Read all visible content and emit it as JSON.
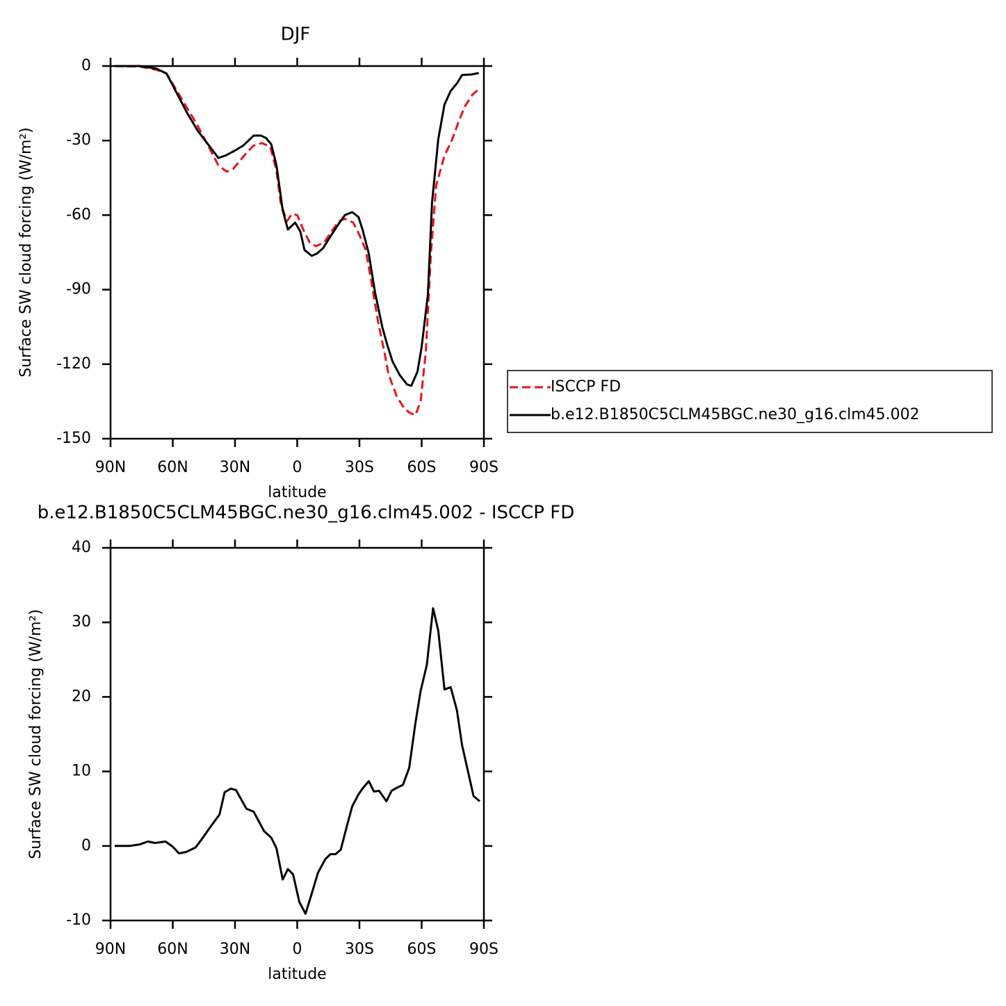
{
  "chart_data": [
    {
      "type": "line",
      "title": "DJF",
      "xlabel": "latitude",
      "ylabel": "Surface SW cloud forcing (W/m²)",
      "xlim": [
        90,
        -90
      ],
      "xticks": [
        {
          "value": 90,
          "label": "90N"
        },
        {
          "value": 60,
          "label": "60N"
        },
        {
          "value": 30,
          "label": "30N"
        },
        0,
        {
          "value": -30,
          "label": "30S"
        },
        {
          "value": -60,
          "label": "60S"
        },
        {
          "value": -90,
          "label": "90S"
        }
      ],
      "ylim": [
        -150,
        0
      ],
      "yticks": [
        0,
        -30,
        -60,
        -90,
        -120,
        -150
      ],
      "legend": "right",
      "series": [
        {
          "name": "ISCCP FD",
          "color": "#e8141c",
          "dashed": true,
          "x": [
            88,
            76,
            68,
            63,
            58,
            53,
            48,
            43,
            38,
            34,
            31,
            28,
            24,
            21,
            17,
            13,
            10,
            8,
            5,
            2.5,
            0,
            -3,
            -6,
            -9,
            -13,
            -17,
            -20,
            -23,
            -27,
            -30,
            -33,
            -36,
            -39,
            -42,
            -44,
            -48,
            -51,
            -54,
            -57,
            -59.5,
            -62,
            -64.5,
            -67,
            -71,
            -74.5,
            -78,
            -81,
            -84.5,
            -88
          ],
          "values": [
            0,
            -0.2,
            -1.5,
            -3,
            -10,
            -17,
            -24,
            -32,
            -40,
            -42.5,
            -41.5,
            -38.5,
            -34.5,
            -32,
            -31,
            -32.5,
            -42,
            -55,
            -62.5,
            -59.5,
            -60,
            -66,
            -71,
            -72.5,
            -71,
            -66,
            -62.5,
            -61.5,
            -63,
            -68,
            -74,
            -88,
            -103,
            -115,
            -124,
            -133,
            -137,
            -139.5,
            -140.5,
            -135,
            -115,
            -75,
            -48,
            -36,
            -30,
            -22,
            -16,
            -11.5,
            -9
          ]
        },
        {
          "name": "b.e12.B1850C5CLM45BGC.ne30_g16.clm45.002",
          "color": "#000000",
          "dashed": false,
          "x": [
            88,
            76,
            68,
            63,
            58,
            53,
            48,
            43,
            38,
            34.5,
            30,
            26,
            21,
            17.5,
            15,
            12.5,
            10,
            7,
            4.5,
            1,
            -1.5,
            -3.5,
            -7,
            -9.5,
            -12.5,
            -16,
            -20,
            -23,
            -26.5,
            -29.5,
            -31.5,
            -34.5,
            -37.5,
            -41,
            -43.5,
            -46,
            -49.5,
            -53,
            -55,
            -58,
            -60,
            -63,
            -65,
            -68,
            -71,
            -74,
            -77,
            -79.5,
            -84,
            -87.5
          ],
          "values": [
            0,
            0,
            -1,
            -3,
            -11,
            -19,
            -26,
            -31.5,
            -37,
            -36,
            -34,
            -32,
            -28,
            -28,
            -29,
            -31.5,
            -40,
            -58,
            -65.8,
            -63,
            -66.6,
            -74,
            -76.4,
            -75.5,
            -73.3,
            -68.6,
            -63.5,
            -60,
            -58.8,
            -60.7,
            -65.8,
            -75.5,
            -91,
            -105,
            -112.5,
            -119,
            -124.5,
            -128.2,
            -128.7,
            -123,
            -113,
            -92,
            -55,
            -29.5,
            -15.5,
            -10,
            -7,
            -3.6,
            -3.4,
            -2.8
          ]
        }
      ]
    },
    {
      "type": "line",
      "title": "b.e12.B1850C5CLM45BGC.ne30_g16.clm45.002 - ISCCP FD",
      "xlabel": "latitude",
      "ylabel": "Surface SW cloud forcing (W/m²)",
      "xlim": [
        90,
        -90
      ],
      "xticks": [
        {
          "value": 90,
          "label": "90N"
        },
        {
          "value": 60,
          "label": "60N"
        },
        {
          "value": 30,
          "label": "30N"
        },
        0,
        {
          "value": -30,
          "label": "30S"
        },
        {
          "value": -60,
          "label": "60S"
        },
        {
          "value": -90,
          "label": "90S"
        }
      ],
      "ylim": [
        -10,
        40
      ],
      "yticks": [
        40,
        30,
        20,
        10,
        0,
        -10
      ],
      "series": [
        {
          "color": "#000000",
          "dashed": false,
          "x": [
            88,
            81,
            76,
            72,
            68.5,
            63.5,
            60,
            57,
            53.5,
            49,
            45.5,
            42,
            37.5,
            35,
            32,
            29.5,
            24.5,
            21,
            16,
            12.5,
            10,
            7,
            4.5,
            2,
            -1,
            -4,
            -7,
            -10,
            -13.5,
            -16,
            -18.5,
            -21,
            -23.5,
            -26.5,
            -29.5,
            -31.5,
            -34.5,
            -37,
            -39.5,
            -43,
            -45.5,
            -48,
            -51,
            -54,
            -57,
            -59.5,
            -62.5,
            -65.5,
            -68,
            -71,
            -74,
            -77,
            -79.5,
            -82.5,
            -85,
            -88
          ],
          "values": [
            0,
            0,
            0.2,
            0.6,
            0.4,
            0.6,
            -0.1,
            -1,
            -0.8,
            -0.2,
            1.1,
            2.5,
            4.2,
            7.2,
            7.7,
            7.5,
            5,
            4.6,
            2,
            1.1,
            -0.3,
            -4.5,
            -3.1,
            -3.8,
            -7.5,
            -9.1,
            -6.4,
            -3.6,
            -1.8,
            -1.1,
            -1.1,
            -0.5,
            2.2,
            5.3,
            6.9,
            7.7,
            8.7,
            7.3,
            7.4,
            6,
            7.4,
            7.8,
            8.2,
            10.5,
            16.5,
            20.8,
            24.3,
            31.9,
            28.9,
            21,
            21.3,
            18.2,
            13.5,
            9.8,
            6.7,
            6
          ]
        }
      ]
    }
  ]
}
